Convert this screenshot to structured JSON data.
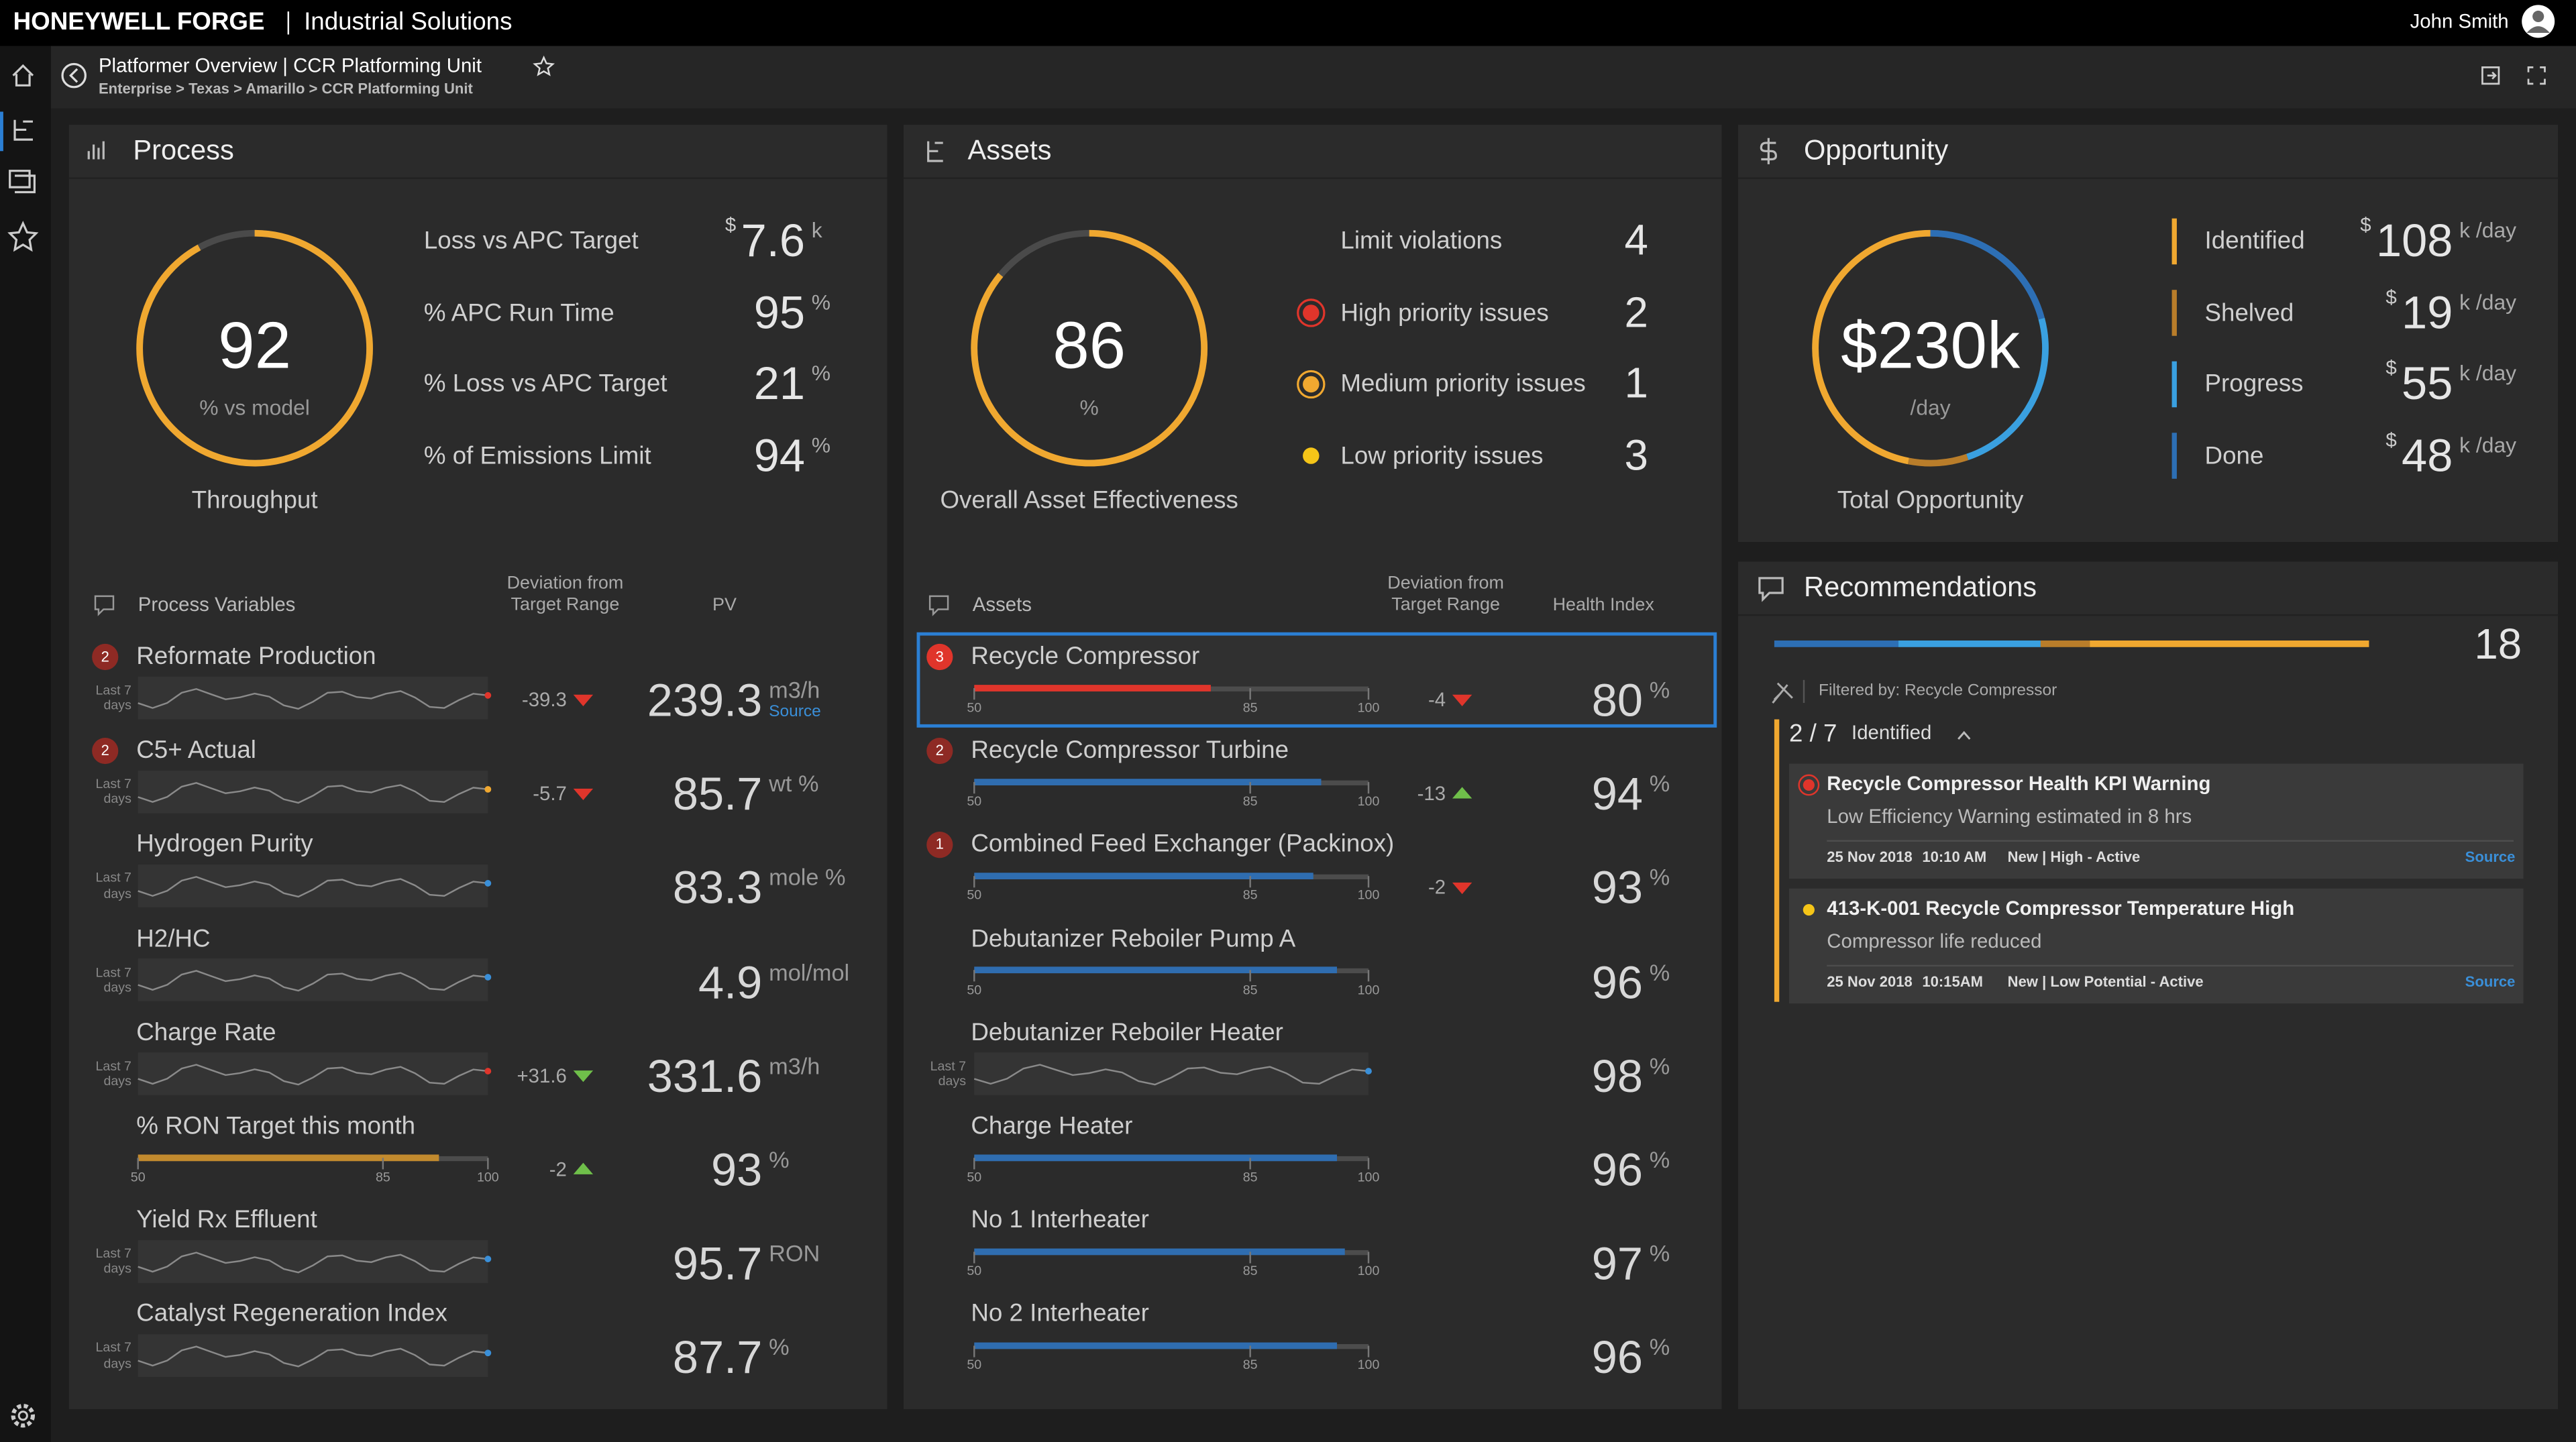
{
  "header": {
    "brand": "HONEYWELL FORGE",
    "product": "Industrial Solutions",
    "user": "John Smith"
  },
  "breadcrumb": {
    "title": "Platformer Overview | CCR Platforming Unit",
    "path": "Enterprise > Texas > Amarillo > CCR Platforming Unit"
  },
  "process": {
    "title": "Process",
    "gauge": {
      "value": 92,
      "label": "% vs model",
      "caption": "Throughput",
      "color": "#f0a830"
    },
    "kpis": [
      {
        "label": "Loss vs APC Target",
        "prefix": "$",
        "value": 7.6,
        "unit": "k"
      },
      {
        "label": "% APC Run Time",
        "value": 95,
        "unit": "%"
      },
      {
        "label": "% Loss vs APC Target",
        "value": 21,
        "unit": "%"
      },
      {
        "label": "% of Emissions Limit",
        "value": 94,
        "unit": "%"
      }
    ],
    "table_title": "Process Variables",
    "deviation_header": "Deviation from Target Range",
    "value_header": "PV",
    "bar_ticks": [
      50,
      85,
      100
    ],
    "rows": [
      {
        "badge": 2,
        "badge_color": "#8e2a24",
        "name": "Reformate Production",
        "range": "Last 7 days",
        "spark_color": "#e0352b",
        "deviation": -39.3,
        "trend": "down",
        "trend_color": "#e0352b",
        "pv": 239.3,
        "unit": "m3/h",
        "link": "Source"
      },
      {
        "badge": 2,
        "badge_color": "#8e2a24",
        "name": "C5+ Actual",
        "range": "Last 7 days",
        "spark_color": "#f0a830",
        "deviation": -5.7,
        "trend": "down",
        "trend_color": "#e0352b",
        "pv": 85.7,
        "unit": "wt %"
      },
      {
        "name": "Hydrogen Purity",
        "range": "Last 7 days",
        "spark_color": "#3a8fd8",
        "pv": 83.3,
        "unit": "mole %"
      },
      {
        "name": "H2/HC",
        "range": "Last 7 days",
        "spark_color": "#3a8fd8",
        "pv": 4.9,
        "unit": "mol/mol"
      },
      {
        "name": "Charge Rate",
        "range": "Last 7 days",
        "spark_color": "#e0352b",
        "deviation": "+31.6",
        "trend": "down",
        "trend_color": "#6fbf4a",
        "pv": 331.6,
        "unit": "m3/h"
      },
      {
        "name": "% RON Target this month",
        "bar_color": "#c28a2e",
        "deviation": -2,
        "trend": "up",
        "trend_color": "#6fbf4a",
        "pv": 93,
        "unit": "%"
      },
      {
        "name": "Yield Rx Effluent",
        "range": "Last 7 days",
        "spark_color": "#3a8fd8",
        "pv": 95.7,
        "unit": "RON"
      },
      {
        "name": "Catalyst Regeneration Index",
        "range": "Last 7 days",
        "spark_color": "#3a8fd8",
        "pv": 87.7,
        "unit": "%"
      }
    ]
  },
  "assets": {
    "title": "Assets",
    "gauge": {
      "value": 86,
      "label": "%",
      "caption": "Overall Asset Effectiveness",
      "color": "#f0a830"
    },
    "issues": [
      {
        "label": "Limit violations",
        "value": 4
      },
      {
        "label": "High priority issues",
        "value": 2,
        "color": "#e0352b",
        "ring": true
      },
      {
        "label": "Medium priority issues",
        "value": 1,
        "color": "#f0a830",
        "ring": true
      },
      {
        "label": "Low priority issues",
        "value": 3,
        "color": "#f5c518"
      }
    ],
    "table_title": "Assets",
    "deviation_header": "Deviation from Target Range",
    "value_header": "Health Index",
    "bar_ticks": [
      50,
      85,
      100
    ],
    "rows": [
      {
        "badge": 3,
        "badge_color": "#e0352b",
        "name": "Recycle Compressor",
        "selected": true,
        "bar_color": "#e0352b",
        "deviation": -4,
        "trend": "down",
        "trend_color": "#e0352b",
        "health": 80,
        "unit": "%"
      },
      {
        "badge": 2,
        "badge_color": "#8e2a24",
        "name": "Recycle Compressor Turbine",
        "bar_color": "#2f6db0",
        "deviation": -13,
        "trend": "up",
        "trend_color": "#6fbf4a",
        "health": 94,
        "unit": "%"
      },
      {
        "badge": 1,
        "badge_color": "#8e2a24",
        "name": "Combined Feed Exchanger (Packinox)",
        "bar_color": "#2f6db0",
        "deviation": -2,
        "trend": "down",
        "trend_color": "#e0352b",
        "health": 93,
        "unit": "%"
      },
      {
        "name": "Debutanizer Reboiler Pump A",
        "bar_color": "#2f6db0",
        "health": 96,
        "unit": "%"
      },
      {
        "name": "Debutanizer Reboiler Heater",
        "range": "Last 7 days",
        "spark_color": "#3a8fd8",
        "health": 98,
        "unit": "%"
      },
      {
        "name": "Charge Heater",
        "bar_color": "#2f6db0",
        "health": 96,
        "unit": "%"
      },
      {
        "name": "No 1 Interheater",
        "bar_color": "#2f6db0",
        "health": 97,
        "unit": "%"
      },
      {
        "name": "No 2 Interheater",
        "bar_color": "#2f6db0",
        "health": 96,
        "unit": "%"
      }
    ]
  },
  "opportunity": {
    "title": "Opportunity",
    "gauge": {
      "prefix": "$",
      "value": 230,
      "unit": "k",
      "label": "/day",
      "caption": "Total Opportunity"
    },
    "items": [
      {
        "label": "Identified",
        "prefix": "$",
        "value": 108,
        "unit": "k /day",
        "color": "#f0a830"
      },
      {
        "label": "Shelved",
        "prefix": "$",
        "value": 19,
        "unit": "k /day",
        "color": "#b97d2a"
      },
      {
        "label": "Progress",
        "prefix": "$",
        "value": 55,
        "unit": "k /day",
        "color": "#3aa0e0"
      },
      {
        "label": "Done",
        "prefix": "$",
        "value": 48,
        "unit": "k /day",
        "color": "#2d6fb5"
      }
    ]
  },
  "recommendations": {
    "title": "Recommendations",
    "count": 18,
    "filter": "Filtered by: Recycle Compressor",
    "group": {
      "count": "2 / 7",
      "label": "Identified",
      "color": "#f0a830"
    },
    "cards": [
      {
        "title": "Recycle Compressor Health KPI Warning",
        "description": "Low Efficiency Warning estimated in 8 hrs",
        "date": "25 Nov 2018",
        "time": "10:10 AM",
        "status": "New | High - Active",
        "link": "Source",
        "color": "#e0352b"
      },
      {
        "title": "413-K-001 Recycle Compressor Temperature High",
        "description": "Compressor life reduced",
        "date": "25 Nov 2018",
        "time": "10:15AM",
        "status": "New | Low Potential - Active",
        "link": "Source",
        "color": "#f5c518"
      }
    ]
  }
}
